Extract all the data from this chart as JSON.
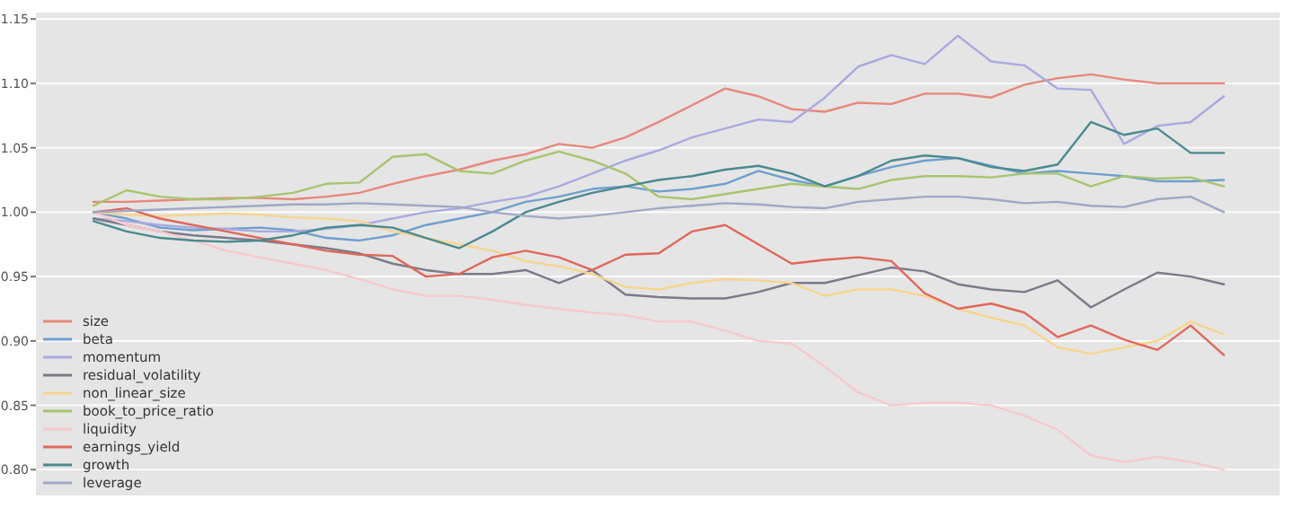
{
  "chart_data": {
    "type": "line",
    "categories": [
      null,
      null,
      null,
      null,
      null,
      null,
      null,
      null,
      null,
      null,
      null,
      null,
      null,
      null,
      null,
      null,
      null,
      null,
      null,
      null,
      null,
      null,
      null,
      null,
      null,
      null,
      null,
      null,
      null,
      null,
      null,
      null,
      null,
      null,
      null
    ],
    "ylim": [
      0.78,
      1.155
    ],
    "yticks": [
      {
        "value": 0.8,
        "label": "0.80"
      },
      {
        "value": 0.85,
        "label": "0.85"
      },
      {
        "value": 0.9,
        "label": "0.90"
      },
      {
        "value": 0.95,
        "label": "0.95"
      },
      {
        "value": 1.0,
        "label": "1.00"
      },
      {
        "value": 1.05,
        "label": "1.05"
      },
      {
        "value": 1.1,
        "label": "1.10"
      },
      {
        "value": 1.15,
        "label": "1.15"
      }
    ],
    "tick_labels": "y",
    "grid": "y",
    "legend": "bottom left",
    "series": [
      {
        "name": "size",
        "color": "#e8877a",
        "values": [
          1.008,
          1.008,
          1.009,
          1.01,
          1.011,
          1.011,
          1.01,
          1.012,
          1.015,
          1.022,
          1.028,
          1.033,
          1.04,
          1.045,
          1.053,
          1.05,
          1.058,
          1.07,
          1.083,
          1.096,
          1.09,
          1.08,
          1.078,
          1.085,
          1.084,
          1.092,
          1.092,
          1.089,
          1.099,
          1.104,
          1.107,
          1.103,
          1.1,
          1.1,
          1.1
        ]
      },
      {
        "name": "beta",
        "color": "#6f9fcf",
        "values": [
          1.0,
          0.995,
          0.988,
          0.986,
          0.987,
          0.988,
          0.986,
          0.98,
          0.978,
          0.982,
          0.99,
          0.995,
          1.0,
          1.008,
          1.012,
          1.018,
          1.02,
          1.016,
          1.018,
          1.022,
          1.032,
          1.025,
          1.02,
          1.028,
          1.035,
          1.04,
          1.042,
          1.036,
          1.03,
          1.032,
          1.03,
          1.028,
          1.024,
          1.024,
          1.025
        ]
      },
      {
        "name": "momentum",
        "color": "#a9a9e0",
        "values": [
          0.995,
          0.993,
          0.99,
          0.988,
          0.987,
          0.985,
          0.985,
          0.987,
          0.99,
          0.995,
          1.0,
          1.003,
          1.008,
          1.012,
          1.02,
          1.03,
          1.04,
          1.048,
          1.058,
          1.065,
          1.072,
          1.07,
          1.089,
          1.113,
          1.122,
          1.115,
          1.137,
          1.117,
          1.114,
          1.096,
          1.095,
          1.053,
          1.067,
          1.07,
          1.09
        ]
      },
      {
        "name": "residual_volatility",
        "color": "#7a7a8a",
        "values": [
          0.995,
          0.99,
          0.985,
          0.982,
          0.98,
          0.978,
          0.975,
          0.972,
          0.968,
          0.96,
          0.955,
          0.952,
          0.952,
          0.955,
          0.945,
          0.955,
          0.936,
          0.934,
          0.933,
          0.933,
          0.938,
          0.945,
          0.945,
          0.951,
          0.957,
          0.954,
          0.944,
          0.94,
          0.938,
          0.947,
          0.926,
          0.94,
          0.953,
          0.95,
          0.944
        ]
      },
      {
        "name": "non_linear_size",
        "color": "#f7d58f",
        "values": [
          1.0,
          0.998,
          0.997,
          0.998,
          0.999,
          0.998,
          0.996,
          0.995,
          0.993,
          0.985,
          0.98,
          0.975,
          0.97,
          0.962,
          0.958,
          0.952,
          0.942,
          0.94,
          0.945,
          0.948,
          0.947,
          0.945,
          0.935,
          0.94,
          0.94,
          0.935,
          0.925,
          0.918,
          0.912,
          0.895,
          0.89,
          0.895,
          0.9,
          0.915,
          0.905
        ]
      },
      {
        "name": "book_to_price_ratio",
        "color": "#a7c56e",
        "values": [
          1.005,
          1.017,
          1.012,
          1.01,
          1.01,
          1.012,
          1.015,
          1.022,
          1.023,
          1.043,
          1.045,
          1.032,
          1.03,
          1.04,
          1.047,
          1.04,
          1.03,
          1.012,
          1.01,
          1.014,
          1.018,
          1.022,
          1.02,
          1.018,
          1.025,
          1.028,
          1.028,
          1.027,
          1.03,
          1.03,
          1.02,
          1.028,
          1.026,
          1.027,
          1.02
        ]
      },
      {
        "name": "liquidity",
        "color": "#f8c9cb",
        "values": [
          1.0,
          0.99,
          0.985,
          0.978,
          0.97,
          0.965,
          0.96,
          0.955,
          0.948,
          0.94,
          0.935,
          0.935,
          0.932,
          0.928,
          0.925,
          0.922,
          0.92,
          0.915,
          0.915,
          0.908,
          0.9,
          0.898,
          0.88,
          0.86,
          0.85,
          0.852,
          0.852,
          0.85,
          0.842,
          0.831,
          0.811,
          0.806,
          0.81,
          0.806,
          0.8
        ]
      },
      {
        "name": "earnings_yield",
        "color": "#e0675a",
        "values": [
          1.0,
          1.003,
          0.995,
          0.99,
          0.985,
          0.98,
          0.975,
          0.97,
          0.967,
          0.966,
          0.95,
          0.952,
          0.965,
          0.97,
          0.965,
          0.955,
          0.967,
          0.968,
          0.985,
          0.99,
          0.975,
          0.96,
          0.963,
          0.965,
          0.962,
          0.937,
          0.925,
          0.929,
          0.922,
          0.903,
          0.912,
          0.901,
          0.893,
          0.912,
          0.889
        ]
      },
      {
        "name": "growth",
        "color": "#4a8a8f",
        "values": [
          0.993,
          0.985,
          0.98,
          0.978,
          0.977,
          0.978,
          0.982,
          0.988,
          0.99,
          0.988,
          0.98,
          0.972,
          0.985,
          1.0,
          1.008,
          1.015,
          1.02,
          1.025,
          1.028,
          1.033,
          1.036,
          1.03,
          1.02,
          1.028,
          1.04,
          1.044,
          1.042,
          1.035,
          1.032,
          1.037,
          1.07,
          1.06,
          1.065,
          1.046,
          1.046
        ]
      },
      {
        "name": "leverage",
        "color": "#a0a8c8",
        "values": [
          1.0,
          1.001,
          1.002,
          1.003,
          1.004,
          1.005,
          1.006,
          1.006,
          1.007,
          1.006,
          1.005,
          1.004,
          1.0,
          0.997,
          0.995,
          0.997,
          1.0,
          1.003,
          1.005,
          1.007,
          1.006,
          1.004,
          1.003,
          1.008,
          1.01,
          1.012,
          1.012,
          1.01,
          1.007,
          1.008,
          1.005,
          1.004,
          1.01,
          1.012,
          1.0
        ]
      }
    ]
  }
}
